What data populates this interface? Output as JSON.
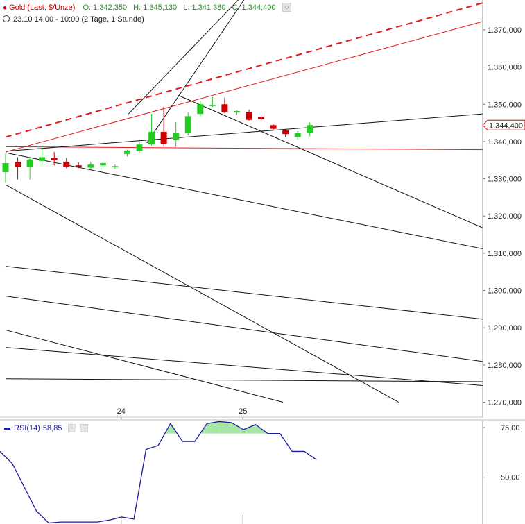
{
  "header": {
    "symbol": "Gold (Last, $/Unze)",
    "ohlc": [
      {
        "label": "O:",
        "value": "1.342,350"
      },
      {
        "label": "H:",
        "value": "1.345,130"
      },
      {
        "label": "L:",
        "value": "1.341,380"
      },
      {
        "label": "C:",
        "value": "1.344,400"
      }
    ],
    "timeframe": "23.10 14:00 - 10:00 (2 Tage, 1 Stunde)"
  },
  "colors": {
    "up": "#22cc22",
    "down": "#cc0000",
    "trend_red": "#e21b1b",
    "trend_black": "#111111",
    "rsi_line": "#1a1aa0",
    "rsi_fill": "#a8e6a8"
  },
  "chart_data": [
    {
      "type": "candlestick",
      "title": "Gold (Last, $/Unze)",
      "ylim": [
        1266,
        1378
      ],
      "y_ticks": [
        "1.370,000",
        "1.360,000",
        "1.350,000",
        "1.340,000",
        "1.330,000",
        "1.320,000",
        "1.310,000",
        "1.300,000",
        "1.290,000",
        "1.280,000",
        "1.270,000"
      ],
      "y_tick_values": [
        1370,
        1360,
        1350,
        1340,
        1330,
        1320,
        1310,
        1300,
        1290,
        1280,
        1270
      ],
      "x_ticks": [
        {
          "label": "24",
          "index": 9.5
        },
        {
          "label": "25",
          "index": 19.5
        }
      ],
      "last_price_label": "1.344,400",
      "last_price": 1344.4,
      "candles": [
        {
          "o": 1331.8,
          "h": 1336.8,
          "l": 1329.0,
          "c": 1334.2
        },
        {
          "o": 1334.6,
          "h": 1335.8,
          "l": 1329.8,
          "c": 1333.2
        },
        {
          "o": 1333.2,
          "h": 1335.6,
          "l": 1329.8,
          "c": 1335.2
        },
        {
          "o": 1334.8,
          "h": 1338.2,
          "l": 1333.6,
          "c": 1335.8
        },
        {
          "o": 1335.6,
          "h": 1337.2,
          "l": 1333.6,
          "c": 1335.0
        },
        {
          "o": 1334.6,
          "h": 1335.6,
          "l": 1332.8,
          "c": 1333.2
        },
        {
          "o": 1333.6,
          "h": 1334.4,
          "l": 1332.8,
          "c": 1333.2
        },
        {
          "o": 1333.0,
          "h": 1334.6,
          "l": 1332.6,
          "c": 1333.8
        },
        {
          "o": 1333.6,
          "h": 1334.6,
          "l": 1332.8,
          "c": 1334.2
        },
        {
          "o": 1333.4,
          "h": 1333.8,
          "l": 1332.6,
          "c": 1333.4
        },
        {
          "o": 1336.6,
          "h": 1337.8,
          "l": 1336.0,
          "c": 1337.6
        },
        {
          "o": 1337.4,
          "h": 1340.0,
          "l": 1337.0,
          "c": 1339.2
        },
        {
          "o": 1339.2,
          "h": 1347.4,
          "l": 1338.8,
          "c": 1342.6
        },
        {
          "o": 1342.6,
          "h": 1349.4,
          "l": 1338.6,
          "c": 1339.4
        },
        {
          "o": 1340.4,
          "h": 1345.2,
          "l": 1338.6,
          "c": 1342.4
        },
        {
          "o": 1342.2,
          "h": 1347.8,
          "l": 1341.8,
          "c": 1346.8
        },
        {
          "o": 1347.4,
          "h": 1351.0,
          "l": 1346.8,
          "c": 1350.0
        },
        {
          "o": 1349.8,
          "h": 1352.0,
          "l": 1349.2,
          "c": 1349.8
        },
        {
          "o": 1350.0,
          "h": 1351.8,
          "l": 1347.6,
          "c": 1347.8
        },
        {
          "o": 1347.8,
          "h": 1348.4,
          "l": 1347.2,
          "c": 1348.2
        },
        {
          "o": 1348.0,
          "h": 1348.6,
          "l": 1345.6,
          "c": 1345.8
        },
        {
          "o": 1346.6,
          "h": 1347.2,
          "l": 1345.8,
          "c": 1346.0
        },
        {
          "o": 1344.4,
          "h": 1344.6,
          "l": 1343.0,
          "c": 1343.4
        },
        {
          "o": 1343.0,
          "h": 1343.4,
          "l": 1341.2,
          "c": 1342.0
        },
        {
          "o": 1341.2,
          "h": 1342.8,
          "l": 1340.6,
          "c": 1342.4
        },
        {
          "o": 1342.35,
          "h": 1345.13,
          "l": 1341.38,
          "c": 1344.4
        }
      ],
      "trendlines": [
        {
          "color": "red",
          "dash": true,
          "p1": [
            0,
            1341.2
          ],
          "p2": [
            39.5,
            1377.5
          ]
        },
        {
          "color": "red",
          "dash": false,
          "p1": [
            0,
            1337.2
          ],
          "p2": [
            39.5,
            1372.5
          ]
        },
        {
          "color": "red",
          "dash": false,
          "p1": [
            0,
            1338.6
          ],
          "p2": [
            39.5,
            1337.8
          ]
        },
        {
          "color": "black",
          "dash": false,
          "p1": [
            0,
            1337.4
          ],
          "p2": [
            39.5,
            1347.5
          ]
        },
        {
          "color": "black",
          "dash": false,
          "p1": [
            0,
            1337.0
          ],
          "p2": [
            39.5,
            1311.0
          ]
        },
        {
          "color": "black",
          "dash": false,
          "p1": [
            14.2,
            1352.4
          ],
          "p2": [
            39.5,
            1316.4
          ]
        },
        {
          "color": "black",
          "dash": false,
          "p1": [
            0,
            1328.4
          ],
          "p2": [
            32.3,
            1270.0
          ]
        },
        {
          "color": "black",
          "dash": false,
          "p1": [
            0,
            1306.5
          ],
          "p2": [
            39.5,
            1292.2
          ]
        },
        {
          "color": "black",
          "dash": false,
          "p1": [
            0,
            1298.5
          ],
          "p2": [
            39.5,
            1280.8
          ]
        },
        {
          "color": "black",
          "dash": false,
          "p1": [
            0,
            1289.4
          ],
          "p2": [
            22.8,
            1270.0
          ]
        },
        {
          "color": "black",
          "dash": false,
          "p1": [
            0,
            1284.7
          ],
          "p2": [
            39.5,
            1274.4
          ]
        },
        {
          "color": "black",
          "dash": false,
          "p1": [
            0,
            1276.3
          ],
          "p2": [
            39.5,
            1275.5
          ]
        },
        {
          "color": "black",
          "dash": false,
          "p1": [
            10.1,
            1347.4
          ],
          "p2": [
            19.7,
            1380.0
          ]
        },
        {
          "color": "black",
          "dash": false,
          "p1": [
            11.6,
            1339.6
          ],
          "p2": [
            20.0,
            1380.0
          ]
        }
      ]
    },
    {
      "type": "line",
      "title": "RSI(14)",
      "series": [
        {
          "name": "RSI(14)",
          "values": [
            63,
            57,
            45,
            33,
            27,
            27.5,
            27.5,
            27.5,
            27.5,
            28.5,
            30,
            29,
            64,
            66,
            77,
            68,
            68,
            77,
            78,
            77.5,
            74,
            76.5,
            72,
            72,
            63,
            63,
            58.85
          ]
        }
      ],
      "ylim": [
        26.5,
        78.5
      ],
      "y_ticks": [
        "75,00",
        "50,00"
      ],
      "y_tick_values": [
        75,
        50
      ],
      "fill_above": 72,
      "label": "RSI(14)",
      "value_label": "58,85"
    }
  ]
}
